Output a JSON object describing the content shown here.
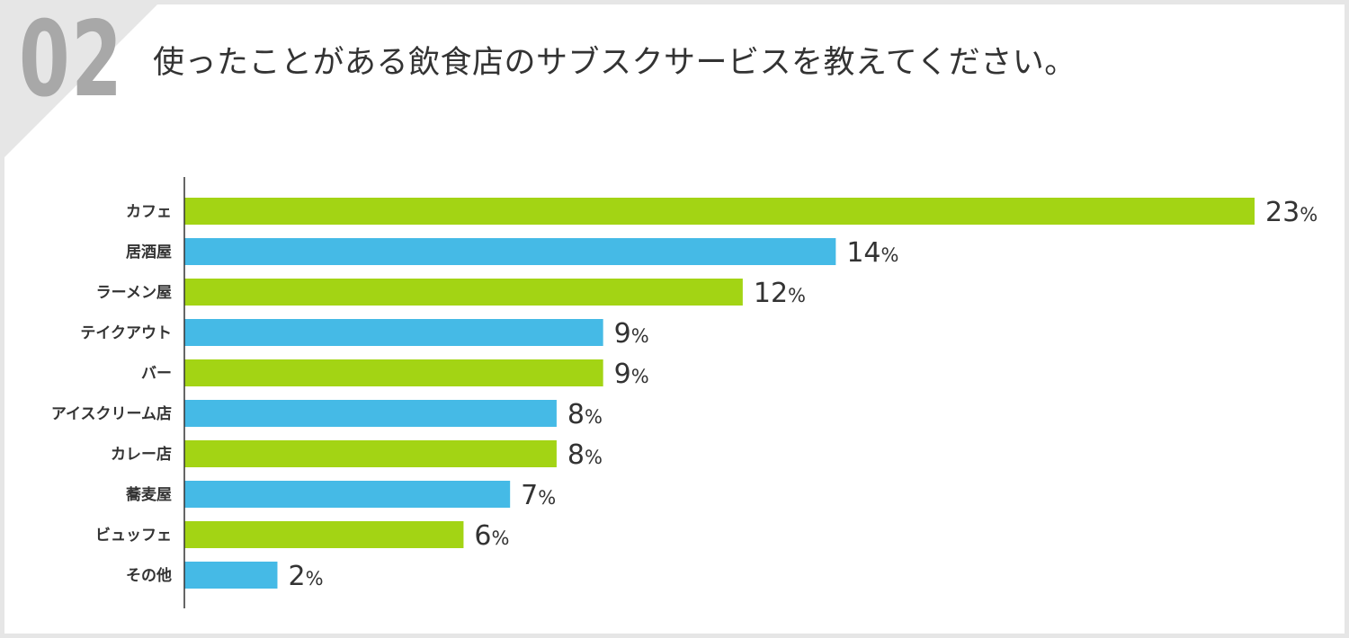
{
  "question_number": "02",
  "question": "使ったことがある飲食店のサブスクサービスを教えてください。",
  "colors": {
    "green": "#a3d414",
    "blue": "#45bae6",
    "axis": "#333333",
    "text": "#333333"
  },
  "chart_data": {
    "type": "bar",
    "orientation": "horizontal",
    "title": "使ったことがある飲食店のサブスクサービスを教えてください。",
    "categories": [
      "カフェ",
      "居酒屋",
      "ラーメン屋",
      "テイクアウト",
      "バー",
      "アイスクリーム店",
      "カレー店",
      "蕎麦屋",
      "ビュッフェ",
      "その他"
    ],
    "values": [
      23,
      14,
      12,
      9,
      9,
      8,
      8,
      7,
      6,
      2
    ],
    "unit": "%",
    "bar_colors": [
      "green",
      "blue",
      "green",
      "blue",
      "green",
      "blue",
      "green",
      "blue",
      "green",
      "blue"
    ],
    "xlim": [
      0,
      23
    ],
    "xlabel": "",
    "ylabel": ""
  }
}
